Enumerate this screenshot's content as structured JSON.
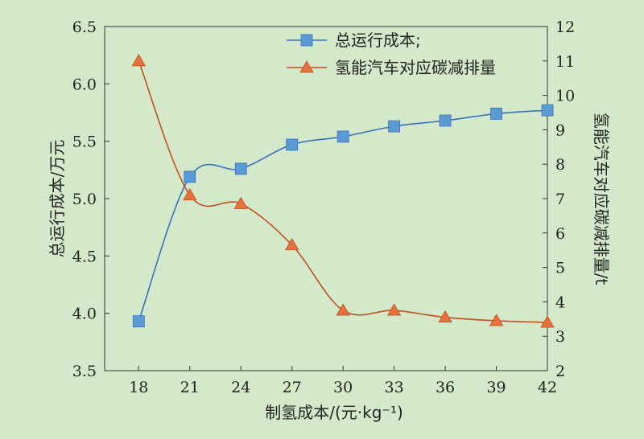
{
  "chart_data": {
    "type": "line",
    "x": [
      18,
      21,
      24,
      27,
      30,
      33,
      36,
      39,
      42
    ],
    "xlabel": "制氢成本/(元·kg⁻¹)",
    "xlim": [
      16,
      42
    ],
    "ylabel_left": "总运行成本/万元",
    "ylim_left": [
      3.5,
      6.5
    ],
    "yticks_left": [
      "3.5",
      "4.0",
      "4.5",
      "5.0",
      "5.5",
      "6.0",
      "6.5"
    ],
    "ylabel_right": "氢能汽车对应碳减排量/t",
    "ylim_right": [
      2,
      12
    ],
    "yticks_right": [
      "2",
      "3",
      "4",
      "5",
      "6",
      "7",
      "8",
      "9",
      "10",
      "11",
      "12"
    ],
    "xticks": [
      "18",
      "21",
      "24",
      "27",
      "30",
      "33",
      "36",
      "39",
      "42"
    ],
    "grid": false,
    "legend_position": "top-center",
    "series": [
      {
        "name": "总运行成本;",
        "axis": "left",
        "marker": "square",
        "color": "#3a6fbf",
        "marker_color": "#5b9bd5",
        "values": [
          3.93,
          5.19,
          5.26,
          5.47,
          5.54,
          5.63,
          5.68,
          5.74,
          5.77
        ]
      },
      {
        "name": "氢能汽车对应碳减排量",
        "axis": "right",
        "marker": "triangle",
        "color": "#c0501e",
        "marker_color": "#e8703a",
        "values": [
          11.0,
          7.1,
          6.85,
          5.65,
          3.75,
          3.75,
          3.55,
          3.45,
          3.4
        ]
      }
    ]
  }
}
